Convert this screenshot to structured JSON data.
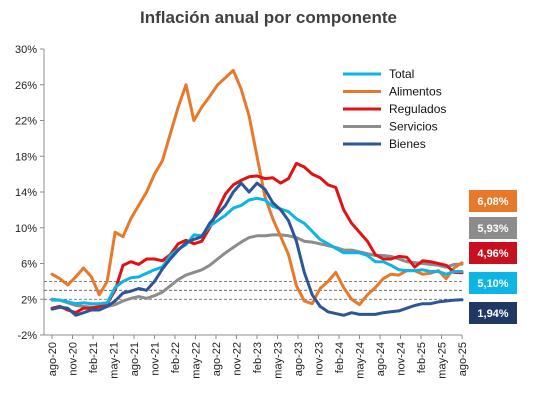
{
  "chart_data": {
    "type": "line",
    "title": "Inflación anual por componente",
    "x_tick_labels": [
      "ago-20",
      "nov-20",
      "feb-21",
      "may-21",
      "ago-21",
      "nov-21",
      "feb-22",
      "may-22",
      "ago-22",
      "nov-22",
      "feb-23",
      "may-23",
      "ago-23",
      "nov-23",
      "feb-24",
      "may-24",
      "ago-24",
      "nov-24",
      "feb-25",
      "may-25",
      "ago-25"
    ],
    "y_tick_labels": [
      "-2%",
      "2%",
      "6%",
      "10%",
      "14%",
      "18%",
      "22%",
      "26%",
      "30%"
    ],
    "ylim": [
      -2,
      30
    ],
    "y_ticks": [
      -2,
      2,
      6,
      10,
      14,
      18,
      22,
      26,
      30
    ],
    "reference_lines": [
      2,
      3,
      4
    ],
    "grid": false,
    "legend_position": "top-right",
    "series": [
      {
        "name": "Total",
        "color": "#0bb5e6",
        "values": [
          1.9,
          1.9,
          1.7,
          1.5,
          1.6,
          1.5,
          1.5,
          1.6,
          3.3,
          4.0,
          4.4,
          4.5,
          4.9,
          5.3,
          5.6,
          6.9,
          7.6,
          8.1,
          9.2,
          9.1,
          10.2,
          10.8,
          11.4,
          12.2,
          12.5,
          13.1,
          13.3,
          13.1,
          12.4,
          12.1,
          11.8,
          11.0,
          10.5,
          9.6,
          8.7,
          8.2,
          7.7,
          7.2,
          7.2,
          7.2,
          6.9,
          6.2,
          6.2,
          5.8,
          5.3,
          5.2,
          5.2,
          5.3,
          5.1,
          5.1,
          4.8,
          5.1,
          5.1
        ]
      },
      {
        "name": "Alimentos",
        "color": "#e8782a",
        "values": [
          4.8,
          4.3,
          3.6,
          4.5,
          5.5,
          4.5,
          2.5,
          4.0,
          9.5,
          9.0,
          11.0,
          12.5,
          14.0,
          16.0,
          17.5,
          20.5,
          23.5,
          26.0,
          22.0,
          23.5,
          24.7,
          26.0,
          26.8,
          27.6,
          25.5,
          22.5,
          18.0,
          13.5,
          11.0,
          9.0,
          7.0,
          3.5,
          1.8,
          1.5,
          3.2,
          4.0,
          5.0,
          3.3,
          2.0,
          1.4,
          2.5,
          3.3,
          4.3,
          4.8,
          4.7,
          5.2,
          5.2,
          4.8,
          4.9,
          5.2,
          4.3,
          5.5,
          6.08
        ]
      },
      {
        "name": "Regulados",
        "color": "#e01212",
        "values": [
          1.0,
          1.2,
          0.8,
          0.5,
          1.0,
          1.0,
          1.2,
          1.5,
          3.0,
          5.8,
          6.2,
          5.9,
          6.5,
          6.5,
          6.3,
          7.0,
          8.2,
          8.6,
          8.2,
          8.5,
          10.0,
          12.0,
          13.8,
          14.8,
          15.3,
          15.7,
          15.8,
          15.5,
          15.6,
          15.0,
          15.5,
          17.2,
          16.8,
          16.0,
          15.6,
          14.8,
          14.5,
          12.0,
          10.5,
          9.5,
          8.5,
          7.0,
          6.5,
          6.5,
          6.8,
          6.7,
          5.6,
          6.3,
          6.2,
          6.0,
          5.8,
          5.0,
          4.96
        ]
      },
      {
        "name": "Servicios",
        "color": "#8c8c8c",
        "values": [
          2.0,
          1.9,
          1.6,
          1.3,
          1.2,
          1.1,
          1.1,
          1.2,
          1.4,
          1.8,
          2.1,
          2.3,
          2.1,
          2.4,
          2.8,
          3.5,
          4.2,
          4.7,
          5.0,
          5.3,
          5.8,
          6.5,
          7.2,
          7.8,
          8.4,
          8.9,
          9.1,
          9.1,
          9.2,
          9.2,
          9.1,
          8.9,
          8.5,
          8.4,
          8.2,
          8.0,
          7.8,
          7.5,
          7.5,
          7.3,
          7.1,
          6.9,
          6.9,
          6.8,
          6.5,
          6.2,
          6.1,
          6.0,
          5.9,
          5.8,
          5.6,
          5.9,
          5.93
        ]
      },
      {
        "name": "Bienes",
        "color": "#2e5597",
        "values": [
          0.9,
          1.1,
          1.0,
          0.2,
          0.5,
          0.8,
          0.8,
          1.2,
          1.8,
          2.7,
          2.9,
          3.2,
          3.0,
          4.0,
          5.4,
          6.5,
          7.5,
          8.3,
          8.7,
          9.0,
          10.5,
          11.5,
          12.5,
          14.0,
          15.0,
          14.0,
          15.0,
          14.3,
          12.8,
          12.0,
          10.8,
          8.5,
          5.0,
          2.5,
          1.2,
          0.6,
          0.4,
          0.2,
          0.5,
          0.3,
          0.3,
          0.3,
          0.5,
          0.6,
          0.7,
          1.0,
          1.3,
          1.5,
          1.5,
          1.7,
          1.8,
          1.9,
          1.94
        ]
      }
    ],
    "end_labels": [
      {
        "text": "6,08%",
        "color": "#e8782a"
      },
      {
        "text": "5,93%",
        "color": "#8c8c8c"
      },
      {
        "text": "4,96%",
        "color": "#c8101f"
      },
      {
        "text": "5,10%",
        "color": "#0bb5e6"
      },
      {
        "text": "1,94%",
        "color": "#1f3864"
      }
    ]
  }
}
